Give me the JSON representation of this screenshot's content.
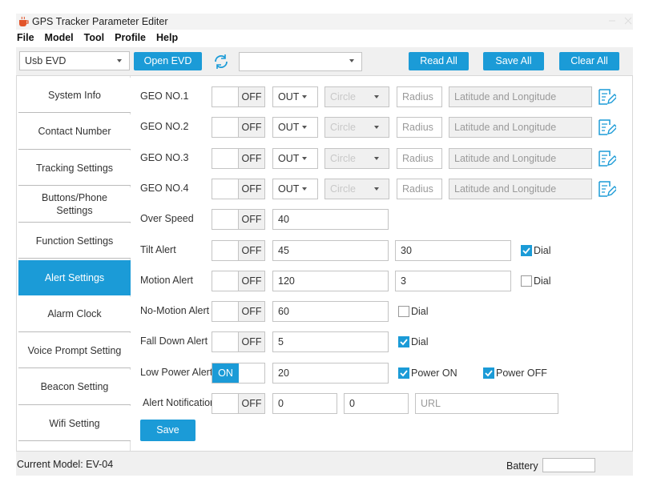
{
  "window": {
    "title": "GPS Tracker Parameter Editer"
  },
  "menu": [
    "File",
    "Model",
    "Tool",
    "Profile",
    "Help"
  ],
  "toolbar": {
    "port": "Usb EVD",
    "open": "Open EVD",
    "read_all": "Read All",
    "save_all": "Save All",
    "clear_all": "Clear All"
  },
  "sidebar": {
    "items": [
      "System Info",
      "Contact Number",
      "Tracking Settings",
      "Buttons/Phone Settings",
      "Function Settings",
      "Alert Settings",
      "Alarm Clock",
      "Voice Prompt Setting",
      "Beacon Setting",
      "Wifi Setting"
    ],
    "active": 5
  },
  "geo_rows": [
    {
      "label": "GEO NO.1",
      "toggle": "OFF",
      "mode": "OUT",
      "shape": "Circle",
      "radius": "Radius",
      "location": "Latitude and Longitude"
    },
    {
      "label": "GEO NO.2",
      "toggle": "OFF",
      "mode": "OUT",
      "shape": "Circle",
      "radius": "Radius",
      "location": "Latitude and Longitude"
    },
    {
      "label": "GEO NO.3",
      "toggle": "OFF",
      "mode": "OUT",
      "shape": "Circle",
      "radius": "Radius",
      "location": "Latitude and Longitude"
    },
    {
      "label": "GEO NO.4",
      "toggle": "OFF",
      "mode": "OUT",
      "shape": "Circle",
      "radius": "Radius",
      "location": "Latitude and Longitude"
    }
  ],
  "alert_rows": [
    {
      "label": "Over Speed",
      "toggle": "OFF",
      "on": false,
      "inputs": [
        {
          "value": "40"
        }
      ],
      "checks": []
    },
    {
      "label": "Tilt Alert",
      "toggle": "OFF",
      "on": false,
      "inputs": [
        {
          "value": "45"
        },
        {
          "value": "30"
        }
      ],
      "checks": [
        {
          "label": "Dial",
          "checked": true
        }
      ]
    },
    {
      "label": "Motion Alert",
      "toggle": "OFF",
      "on": false,
      "inputs": [
        {
          "value": "120"
        },
        {
          "value": "3"
        }
      ],
      "checks": [
        {
          "label": "Dial",
          "checked": false
        }
      ]
    },
    {
      "label": "No-Motion Alert",
      "toggle": "OFF",
      "on": false,
      "inputs": [
        {
          "value": "60"
        }
      ],
      "checks": [
        {
          "label": "Dial",
          "checked": false
        }
      ]
    },
    {
      "label": "Fall Down Alert",
      "toggle": "OFF",
      "on": false,
      "inputs": [
        {
          "value": "5"
        }
      ],
      "checks": [
        {
          "label": "Dial",
          "checked": true
        }
      ]
    },
    {
      "label": "Low Power Alert",
      "toggle": "ON",
      "on": true,
      "inputs": [
        {
          "value": "20"
        }
      ],
      "checks": [
        {
          "label": "Power ON",
          "checked": true
        },
        {
          "label": "Power OFF",
          "checked": true
        }
      ]
    },
    {
      "label": "Alert Notification",
      "toggle": "OFF",
      "on": false,
      "inputs": [
        {
          "value": "0"
        },
        {
          "value": "0"
        },
        {
          "placeholder": "URL"
        }
      ],
      "checks": []
    }
  ],
  "save": "Save",
  "status": {
    "model": "Current Model: EV-04",
    "battery": "Battery"
  }
}
